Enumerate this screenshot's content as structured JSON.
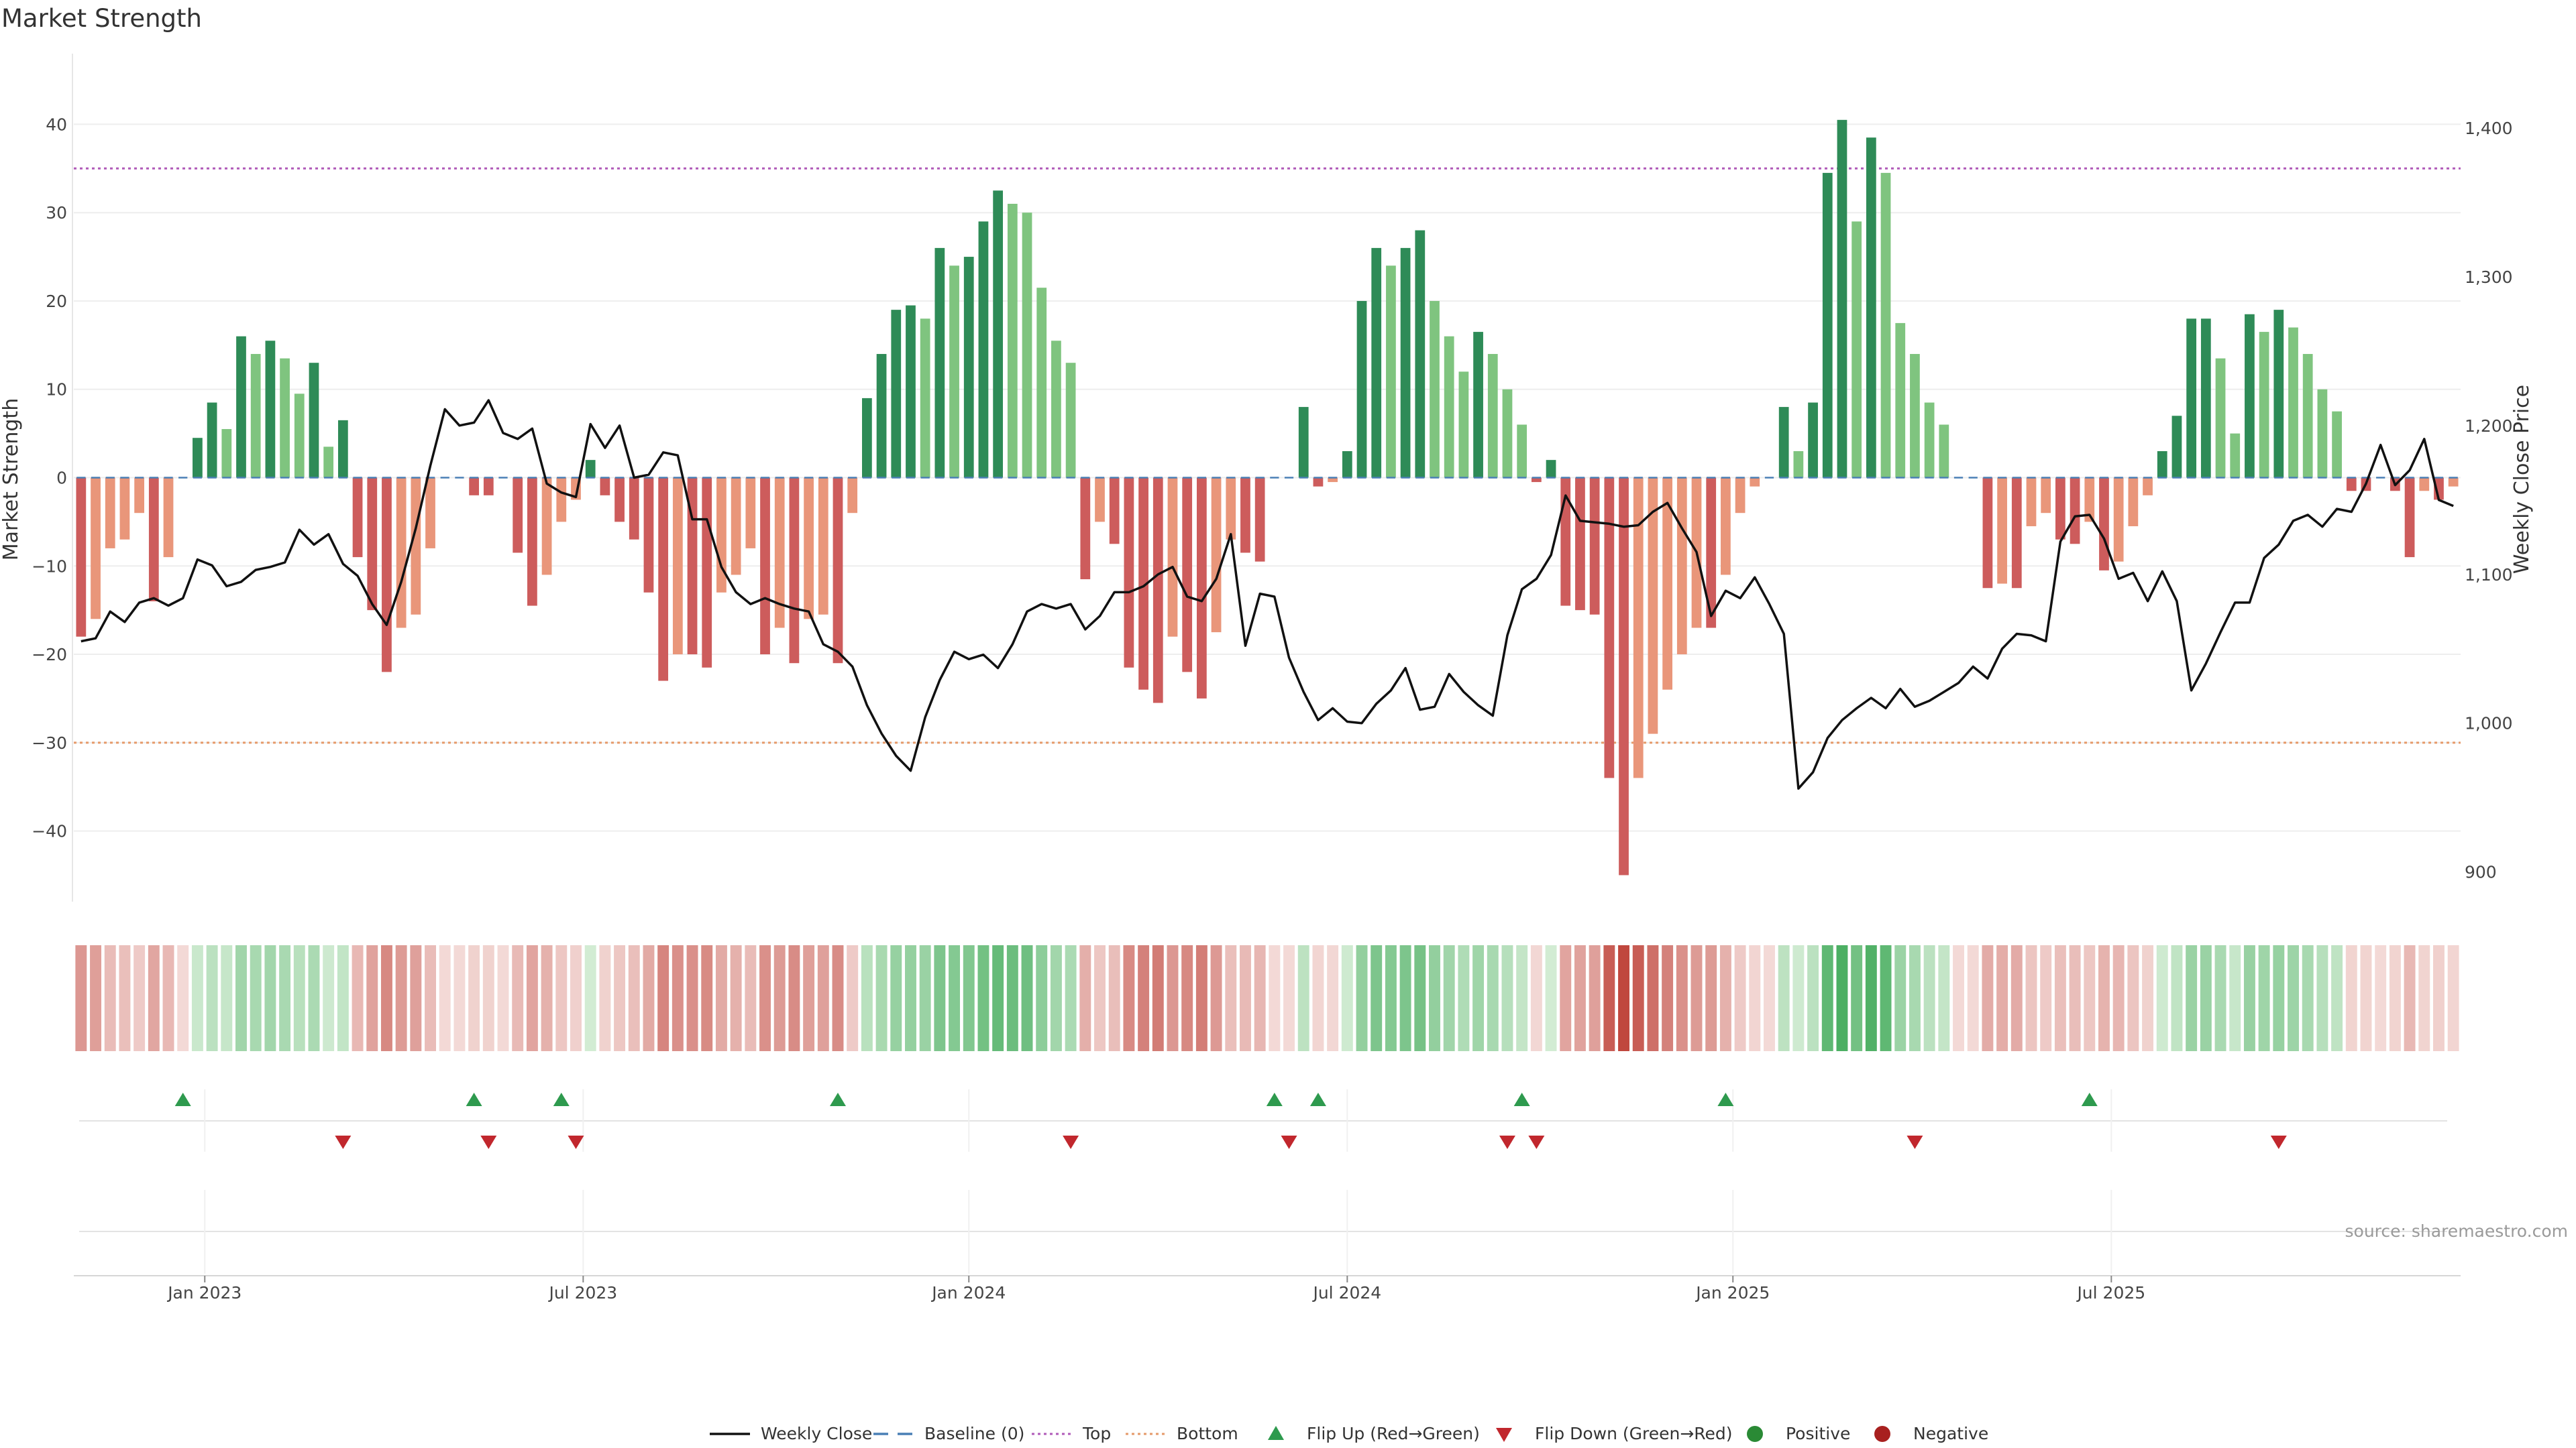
{
  "chart_data": {
    "type": "bar",
    "title": "Market Strength",
    "ylabel_left": "Market Strength",
    "ylabel_right": "Weekly Close Price",
    "ylim_left": [
      -48,
      48
    ],
    "ylim_right": [
      880,
      1450
    ],
    "yticks_left": [
      40,
      30,
      20,
      10,
      0,
      -10,
      -20,
      -30,
      -40
    ],
    "yticks_left_labels": [
      "40",
      "30",
      "20",
      "10",
      "0",
      "−10",
      "−20",
      "−30",
      "−40"
    ],
    "yticks_right": [
      1400,
      1300,
      1200,
      1100,
      1000,
      900
    ],
    "yticks_right_labels": [
      "1,400",
      "1,300",
      "1,200",
      "1,100",
      "1,000",
      "900"
    ],
    "top_threshold": 35,
    "bottom_threshold": -30,
    "x_week_range": [
      0,
      157
    ],
    "x_ticks": [
      {
        "label": "Jan 2023",
        "week": 8.5
      },
      {
        "label": "Jul 2023",
        "week": 34.5
      },
      {
        "label": "Jan 2024",
        "week": 61
      },
      {
        "label": "Jul 2024",
        "week": 87
      },
      {
        "label": "Jan 2025",
        "week": 113.5
      },
      {
        "label": "Jul 2025",
        "week": 139.5
      }
    ],
    "strength": [
      -18,
      -16,
      -8,
      -7,
      -4,
      -14,
      -9,
      0,
      4.5,
      8.5,
      5.5,
      16,
      14,
      15.5,
      13.5,
      9.5,
      13,
      3.5,
      6.5,
      -9,
      -15,
      -22,
      -17,
      -15.5,
      -8,
      0,
      0,
      -2,
      -2,
      0,
      -8.5,
      -14.5,
      -11,
      -5,
      -2.5,
      2,
      -2,
      -5,
      -7,
      -13,
      -23,
      -20,
      -20,
      -21.5,
      -13,
      -11,
      -8,
      -20,
      -17,
      -21,
      -16,
      -15.5,
      -21,
      -4,
      9,
      14,
      19,
      19.5,
      18,
      26,
      24,
      25,
      29,
      32.5,
      31,
      30,
      21.5,
      15.5,
      13,
      -11.5,
      -5,
      -7.5,
      -21.5,
      -24,
      -25.5,
      -18,
      -22,
      -25,
      -17.5,
      -7,
      -8.5,
      -9.5,
      0,
      0,
      8,
      -1,
      -0.5,
      3,
      20,
      26,
      24,
      26,
      28,
      20,
      16,
      12,
      16.5,
      14,
      10,
      6,
      -0.5,
      2,
      -14.5,
      -15,
      -15.5,
      -34,
      -45,
      -34,
      -29,
      -24,
      -20,
      -17,
      -17,
      -11,
      -4,
      -1,
      0,
      8,
      3,
      8.5,
      34.5,
      40.5,
      29,
      38.5,
      34.5,
      17.5,
      14,
      8.5,
      6,
      0,
      0,
      -12.5,
      -12,
      -12.5,
      -5.5,
      -4,
      -7,
      -7.5,
      -5,
      -10.5,
      -9.5,
      -5.5,
      -2,
      3,
      7,
      18,
      18,
      13.5,
      5,
      18.5,
      16.5,
      19,
      17,
      14,
      10,
      7.5,
      -1.5,
      -1.5,
      0,
      -1.5,
      -9,
      -1.5,
      -2.5,
      -1
    ],
    "weekly_close": [
      1055,
      1057,
      1075,
      1068,
      1081,
      1084,
      1079,
      1084,
      1110,
      1106,
      1092,
      1095,
      1103,
      1105,
      1108,
      1130,
      1120,
      1127,
      1107,
      1099,
      1080,
      1066,
      1095,
      1131,
      1173,
      1211,
      1200,
      1202,
      1217,
      1195,
      1191,
      1198,
      1161,
      1155,
      1152,
      1201,
      1185,
      1200,
      1165,
      1167,
      1182,
      1180,
      1137,
      1137,
      1105,
      1088,
      1080,
      1084,
      1080,
      1077,
      1075,
      1053,
      1048,
      1038,
      1012,
      993,
      978,
      968,
      1004,
      1029,
      1048,
      1043,
      1046,
      1037,
      1053,
      1075,
      1080,
      1077,
      1080,
      1063,
      1072,
      1088,
      1088,
      1092,
      1100,
      1105,
      1085,
      1082,
      1097,
      1127,
      1052,
      1087,
      1085,
      1044,
      1021,
      1002,
      1010,
      1001,
      1000,
      1013,
      1022,
      1037,
      1009,
      1011,
      1033,
      1021,
      1012,
      1005,
      1059,
      1090,
      1097,
      1113,
      1153,
      1136,
      1135,
      1134,
      1132,
      1133,
      1142,
      1148,
      1131,
      1115,
      1072,
      1089,
      1084,
      1098,
      1080,
      1060,
      956,
      967,
      990,
      1002,
      1010,
      1017,
      1010,
      1023,
      1011,
      1015,
      1021,
      1027,
      1038,
      1030,
      1050,
      1060,
      1059,
      1055,
      1122,
      1139,
      1140,
      1124,
      1097,
      1101,
      1082,
      1102,
      1082,
      1022,
      1040,
      1061,
      1081,
      1081,
      1111,
      1120,
      1136,
      1140,
      1132,
      1144,
      1142,
      1161,
      1187,
      1160,
      1170,
      1191,
      1150,
      1146
    ],
    "heat_strip": [
      -18,
      -16,
      -8,
      -7,
      -4,
      -14,
      -9,
      0,
      4.5,
      8.5,
      5.5,
      16,
      14,
      15.5,
      13.5,
      9.5,
      13,
      3.5,
      6.5,
      -9,
      -15,
      -22,
      -17,
      -15.5,
      -8,
      0,
      0,
      -2,
      -2,
      0,
      -8.5,
      -14.5,
      -11,
      -5,
      -2.5,
      2,
      -2,
      -5,
      -7,
      -13,
      -23,
      -20,
      -20,
      -21.5,
      -13,
      -11,
      -8,
      -20,
      -17,
      -21,
      -16,
      -15.5,
      -21,
      -4,
      9,
      14,
      19,
      19.5,
      18,
      26,
      24,
      25,
      29,
      32.5,
      31,
      30,
      21.5,
      15.5,
      13,
      -11.5,
      -5,
      -7.5,
      -21.5,
      -24,
      -25.5,
      -18,
      -22,
      -25,
      -17.5,
      -7,
      -8.5,
      -9.5,
      0,
      0,
      8,
      -1,
      -0.5,
      3,
      20,
      26,
      24,
      26,
      28,
      20,
      16,
      12,
      16.5,
      14,
      10,
      6,
      -0.5,
      2,
      -14.5,
      -15,
      -15.5,
      -34,
      -45,
      -34,
      -29,
      -24,
      -20,
      -17,
      -17,
      -11,
      -4,
      -1,
      0,
      8,
      3,
      8.5,
      34.5,
      40.5,
      29,
      38.5,
      34.5,
      17.5,
      14,
      8.5,
      6,
      0,
      0,
      -12.5,
      -12,
      -12.5,
      -5.5,
      -4,
      -7,
      -7.5,
      -5,
      -10.5,
      -9.5,
      -5.5,
      -2,
      3,
      7,
      18,
      18,
      13.5,
      5,
      18.5,
      16.5,
      19,
      17,
      14,
      10,
      7.5,
      -1.5,
      -1.5,
      0,
      -1.5,
      -9,
      -1.5,
      -2.5,
      -1
    ],
    "flip_up_weeks": [
      7,
      27,
      33,
      52,
      82,
      85,
      99,
      113,
      138
    ],
    "flip_down_weeks": [
      18,
      28,
      34,
      68,
      83,
      98,
      100,
      126,
      151
    ],
    "legend": [
      {
        "label": "Weekly Close",
        "kind": "line",
        "color": "#111111"
      },
      {
        "label": "Baseline (0)",
        "kind": "dash",
        "color": "#4a7fb5"
      },
      {
        "label": "Top",
        "kind": "dot",
        "color": "#b05ab8"
      },
      {
        "label": "Bottom",
        "kind": "dot",
        "color": "#e59a6a"
      },
      {
        "label": "Flip Up (Red→Green)",
        "kind": "tri-up",
        "color": "#2e9a4e"
      },
      {
        "label": "Flip Down (Green→Red)",
        "kind": "tri-down",
        "color": "#c1272d"
      },
      {
        "label": "Positive",
        "kind": "circle",
        "color": "#2a8a35"
      },
      {
        "label": "Negative",
        "kind": "circle",
        "color": "#a8201f"
      }
    ],
    "source": "source: sharemaestro.com",
    "colors": {
      "green_strong": "#2e8b57",
      "green_light": "#7fc47f",
      "red_strong": "#cd5c5c",
      "red_light": "#e9967a",
      "top_line": "#b05ab8",
      "bottom_line": "#e59a6a",
      "baseline": "#4a7fb5",
      "price_line": "#111111",
      "grid": "#eeeeee"
    }
  }
}
